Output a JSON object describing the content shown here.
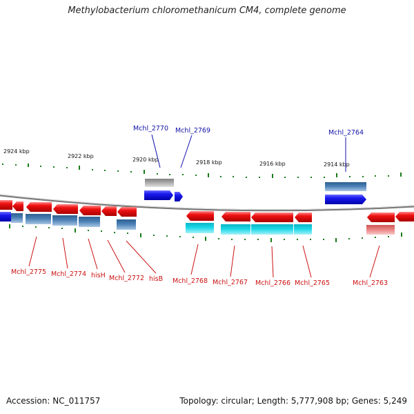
{
  "title": "Methylobacterium chloromethanicum CM4, complete genome",
  "footer": {
    "accession": "Accession: NC_011757",
    "summary": "Topology: circular; Length: 5,777,908 bp; Genes: 5,249"
  },
  "colors": {
    "forward_gene": "#1a1aee",
    "reverse_gene": "#ee1111",
    "cds_steel": "#4a7fb5",
    "cds_cyan": "#1ad8e8",
    "pseudo_grey": "#a8a8a8",
    "pseudo_pink": "#e88080",
    "top_label": "#1111aa",
    "bottom_label": "#cc1111",
    "tick": "#1a7a1a",
    "backbone": "#777777"
  },
  "scale_labels": [
    "2924 kbp",
    "2922 kbp",
    "2920 kbp",
    "2918 kbp",
    "2916 kbp",
    "2914 kbp"
  ],
  "top_genes": [
    "Mchl_2770",
    "Mchl_2769",
    "Mchl_2764"
  ],
  "bottom_genes": [
    "Mchl_2775",
    "Mchl_2774",
    "hisH",
    "Mchl_2772",
    "hisB",
    "Mchl_2768",
    "Mchl_2767",
    "Mchl_2766",
    "Mchl_2765",
    "Mchl_2763"
  ]
}
